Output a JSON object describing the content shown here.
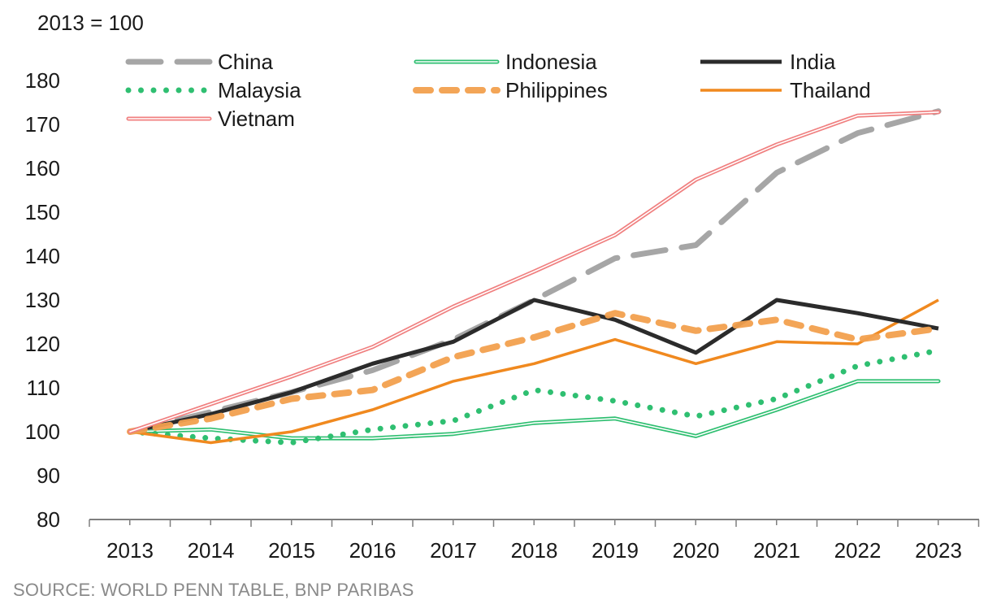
{
  "chart_data": {
    "type": "line",
    "title": "",
    "subtitle": "2013 = 100",
    "xlabel": "",
    "ylabel": "",
    "x": [
      "2013",
      "2014",
      "2015",
      "2016",
      "2017",
      "2018",
      "2019",
      "2020",
      "2021",
      "2022",
      "2023"
    ],
    "ylim": [
      80,
      180
    ],
    "yticks": [
      80,
      90,
      100,
      110,
      120,
      130,
      140,
      150,
      160,
      170,
      180
    ],
    "grid": false,
    "legend_position": "top",
    "series": [
      {
        "name": "China",
        "style": "dashed",
        "color": "#a6a6a6",
        "values": [
          100,
          104.5,
          109,
          114,
          121,
          130,
          139.5,
          142.5,
          159,
          168,
          173
        ]
      },
      {
        "name": "Indonesia",
        "style": "double",
        "color": "#2fbf71",
        "values": [
          100,
          100.5,
          98.5,
          98.5,
          99.5,
          102,
          103,
          99,
          105,
          111.5,
          111.5
        ]
      },
      {
        "name": "India",
        "style": "solid-thick",
        "color": "#2b2b2b",
        "values": [
          100,
          104,
          109,
          115.5,
          120.5,
          130,
          125.5,
          118,
          130,
          127,
          123.5
        ]
      },
      {
        "name": "Malaysia",
        "style": "dotted",
        "color": "#2fbf71",
        "values": [
          100,
          98.5,
          97.5,
          100.5,
          102.5,
          109.5,
          107,
          103.5,
          107.5,
          115,
          118.5
        ]
      },
      {
        "name": "Philippines",
        "style": "dashed-thick",
        "color": "#f2a04e",
        "values": [
          100,
          103,
          107.5,
          109.5,
          117,
          121.5,
          127,
          123,
          125.5,
          121,
          123.5
        ]
      },
      {
        "name": "Thailand",
        "style": "solid",
        "color": "#f0891f",
        "values": [
          100,
          97.5,
          100,
          105,
          111.5,
          115.5,
          121,
          115.5,
          120.5,
          120,
          130
        ]
      },
      {
        "name": "Vietnam",
        "style": "double",
        "color": "#f08080",
        "values": [
          100,
          106.3,
          112.6,
          119.3,
          128.5,
          136.5,
          144.8,
          157.4,
          165.4,
          172,
          172.8
        ]
      }
    ]
  },
  "source": "SOURCE: WORLD PENN TABLE, BNP PARIBAS"
}
